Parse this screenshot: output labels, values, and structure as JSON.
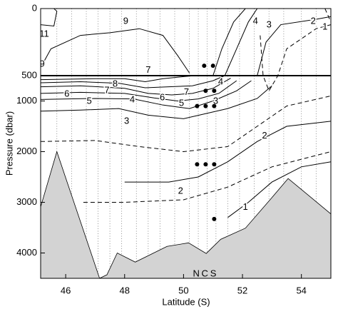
{
  "chart_data": {
    "type": "contour",
    "xlabel": "Latitude (S)",
    "ylabel": "Pressure (dbar)",
    "xlim": [
      45.15,
      55
    ],
    "xticks": [
      46,
      48,
      50,
      52,
      54
    ],
    "ylim": [
      0,
      4500
    ],
    "ysplit": 500,
    "yticks": [
      0,
      500,
      1000,
      2000,
      3000,
      4000
    ],
    "stations": [
      45.7,
      46.2,
      46.7,
      47.1,
      47.5,
      47.9,
      48.4,
      48.8,
      49.2,
      49.7,
      50.2,
      50.5,
      50.8,
      51.1,
      51.5,
      51.9,
      52.4,
      52.9,
      53.4,
      54.0,
      54.5
    ],
    "bathymetry": {
      "color": "#d3d3d3",
      "x": [
        45.15,
        45.7,
        47.15,
        47.4,
        47.75,
        48.36,
        49.44,
        50.17,
        50.77,
        51.26,
        52.1,
        52.95,
        53.55,
        54.4,
        55
      ],
      "y": [
        3090,
        2000,
        4500,
        4430,
        4000,
        4180,
        3870,
        3800,
        4010,
        3730,
        3510,
        2940,
        2530,
        2940,
        3230
      ]
    },
    "contours": [
      {
        "style": "solid",
        "x": [
          45.15,
          45.5,
          46.5,
          47.5,
          48.5,
          49.3,
          49.8,
          50.2
        ],
        "y": [
          440,
          300,
          200,
          180,
          150,
          200,
          350,
          480
        ]
      },
      {
        "style": "solid",
        "x": [
          45.15,
          45.6,
          45.7,
          45.6
        ],
        "y": [
          120,
          130,
          20,
          0
        ]
      },
      {
        "style": "solid",
        "x": [
          51,
          51.3,
          51.7,
          52.1
        ],
        "y": [
          500,
          300,
          100,
          0
        ]
      },
      {
        "style": "solid",
        "x": [
          51.4,
          51.8,
          52.2,
          52.5
        ],
        "y": [
          500,
          300,
          100,
          0
        ]
      },
      {
        "style": "solid",
        "x": [
          52.5,
          52.8,
          53.3,
          54.5,
          55
        ],
        "y": [
          500,
          250,
          120,
          80,
          60
        ]
      },
      {
        "style": "dashed",
        "x": [
          54.8,
          55
        ],
        "y": [
          0,
          100
        ]
      },
      {
        "style": "solid",
        "x": [
          45.15,
          47,
          48,
          48.7,
          49.3,
          50,
          50.4
        ],
        "y": [
          580,
          560,
          560,
          620,
          560,
          520,
          500
        ]
      },
      {
        "style": "solid",
        "x": [
          45.15,
          46.5,
          47.8,
          48.7,
          49.5,
          50.3,
          51,
          51.4
        ],
        "y": [
          640,
          620,
          650,
          740,
          720,
          700,
          600,
          500
        ]
      },
      {
        "style": "solid",
        "x": [
          45.15,
          46.5,
          48,
          48.8,
          49.6,
          50.3,
          51,
          51.6
        ],
        "y": [
          720,
          700,
          750,
          850,
          880,
          850,
          750,
          550
        ]
      },
      {
        "style": "solid",
        "x": [
          45.15,
          46.5,
          48,
          49,
          49.8,
          50.5,
          51.2,
          51.8
        ],
        "y": [
          850,
          830,
          850,
          940,
          1000,
          960,
          850,
          600
        ]
      },
      {
        "style": "solid",
        "x": [
          45.15,
          47,
          48.3,
          49.3,
          50.2,
          51,
          51.8,
          52.3
        ],
        "y": [
          970,
          950,
          960,
          1080,
          1150,
          1000,
          800,
          600
        ]
      },
      {
        "style": "solid",
        "x": [
          45.15,
          46.5,
          47.8,
          48.8,
          50,
          51.5,
          52.5,
          53
        ],
        "y": [
          1200,
          1180,
          1150,
          1280,
          1350,
          1150,
          950,
          700
        ]
      },
      {
        "style": "dashed",
        "x": [
          45.15,
          47,
          48.5,
          50,
          51.5,
          52.5,
          53.5,
          55
        ],
        "y": [
          1800,
          1780,
          1900,
          2000,
          1900,
          1500,
          1100,
          900
        ]
      },
      {
        "style": "solid",
        "x": [
          48,
          49.5,
          50.5,
          51.5,
          52.5,
          53.5,
          55
        ],
        "y": [
          2600,
          2600,
          2500,
          2200,
          1800,
          1500,
          1400
        ]
      },
      {
        "style": "dashed",
        "x": [
          46.6,
          48,
          50,
          51.5,
          53,
          55
        ],
        "y": [
          3000,
          3000,
          2950,
          2700,
          2300,
          2000
        ]
      },
      {
        "style": "solid",
        "x": [
          51.5,
          52.2,
          53,
          54,
          55
        ],
        "y": [
          3300,
          3000,
          2600,
          2300,
          2200
        ]
      },
      {
        "style": "dashed",
        "x": [
          52.6,
          52.7,
          52.9,
          53.2,
          53.5,
          54.5,
          55
        ],
        "y": [
          200,
          500,
          800,
          500,
          300,
          150,
          120
        ]
      }
    ],
    "contour_labels": [
      {
        "value": 9,
        "x": 48.04,
        "y": 96
      },
      {
        "value": 11,
        "x": 45.27,
        "y": 191
      },
      {
        "value": 9,
        "x": 45.2,
        "y": 415
      },
      {
        "value": 4,
        "x": 52.44,
        "y": 96
      },
      {
        "value": 3,
        "x": 52.9,
        "y": 122
      },
      {
        "value": 2,
        "x": 54.4,
        "y": 96
      },
      {
        "value": 1,
        "x": 54.8,
        "y": 138
      },
      {
        "value": 8,
        "x": 47.68,
        "y": 668
      },
      {
        "value": 7,
        "x": 48.8,
        "y": 460
      },
      {
        "value": 7,
        "x": 47.4,
        "y": 800
      },
      {
        "value": 6,
        "x": 46.04,
        "y": 866
      },
      {
        "value": 5,
        "x": 46.8,
        "y": 1007
      },
      {
        "value": 4,
        "x": 48.26,
        "y": 980
      },
      {
        "value": 6,
        "x": 49.28,
        "y": 940
      },
      {
        "value": 7,
        "x": 50.1,
        "y": 830
      },
      {
        "value": 5,
        "x": 49.93,
        "y": 1050
      },
      {
        "value": 4,
        "x": 51.26,
        "y": 630
      },
      {
        "value": 3,
        "x": 51.09,
        "y": 1007
      },
      {
        "value": 3,
        "x": 48.07,
        "y": 1400
      },
      {
        "value": 2,
        "x": 52.75,
        "y": 1690
      },
      {
        "value": 2,
        "x": 49.9,
        "y": 2780
      },
      {
        "value": 1,
        "x": 52.1,
        "y": 3100
      }
    ],
    "samples": {
      "x": [
        50.7,
        51.0,
        50.75,
        51.04,
        50.46,
        50.75,
        51.04,
        50.46,
        50.75,
        51.04,
        51.04
      ],
      "y": [
        426,
        426,
        800,
        800,
        1100,
        1100,
        1100,
        2250,
        2250,
        2250,
        3330
      ]
    },
    "station_labels": [
      {
        "text": "N",
        "x": 50.43
      },
      {
        "text": "C",
        "x": 50.72
      },
      {
        "text": "S",
        "x": 51.01
      }
    ]
  }
}
